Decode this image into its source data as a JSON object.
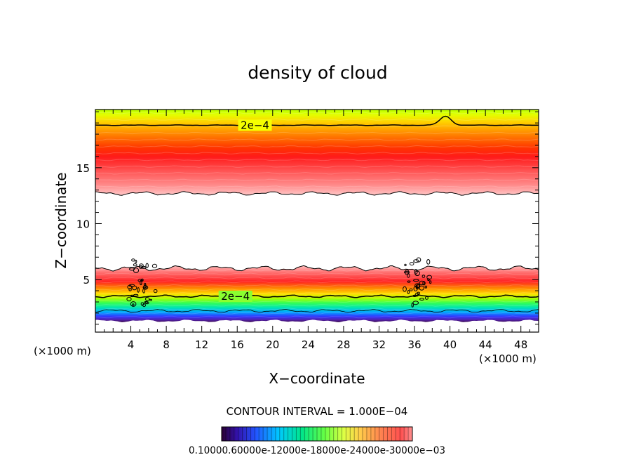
{
  "chart_data": {
    "type": "heatmap",
    "title": "density of cloud",
    "xlabel": "X−coordinate",
    "ylabel": "Z−coordinate",
    "x_unit_left": "(×1000 m)",
    "x_unit_right": "(×1000 m)",
    "xlim": [
      0,
      50
    ],
    "ylim": [
      0.3,
      20.2
    ],
    "x_ticks": [
      4,
      8,
      12,
      16,
      20,
      24,
      28,
      32,
      36,
      40,
      44,
      48
    ],
    "y_ticks": [
      5,
      10,
      15
    ],
    "contour_interval_text": "CONTOUR INTERVAL = 1.000E−04",
    "contour_labels": [
      "2e−4",
      "2e−4"
    ],
    "colorbar_tick_text": "0.10000.60000e-12000e-18000e-24000e-30000e−03",
    "upper_cloud_layer": {
      "base_z": 12.7,
      "peak_z": 15.0,
      "top_z": 20.2,
      "contour_2e-4_z": 18.8,
      "bump_x": 39.5,
      "bump_z": 19.6
    },
    "lower_cloud_layer": {
      "base_z": 1.3,
      "peak_z": 4.8,
      "top_z": 6.0,
      "contour_2e-4_z": 3.5
    },
    "convective_disturbances_x": [
      5,
      36
    ]
  }
}
